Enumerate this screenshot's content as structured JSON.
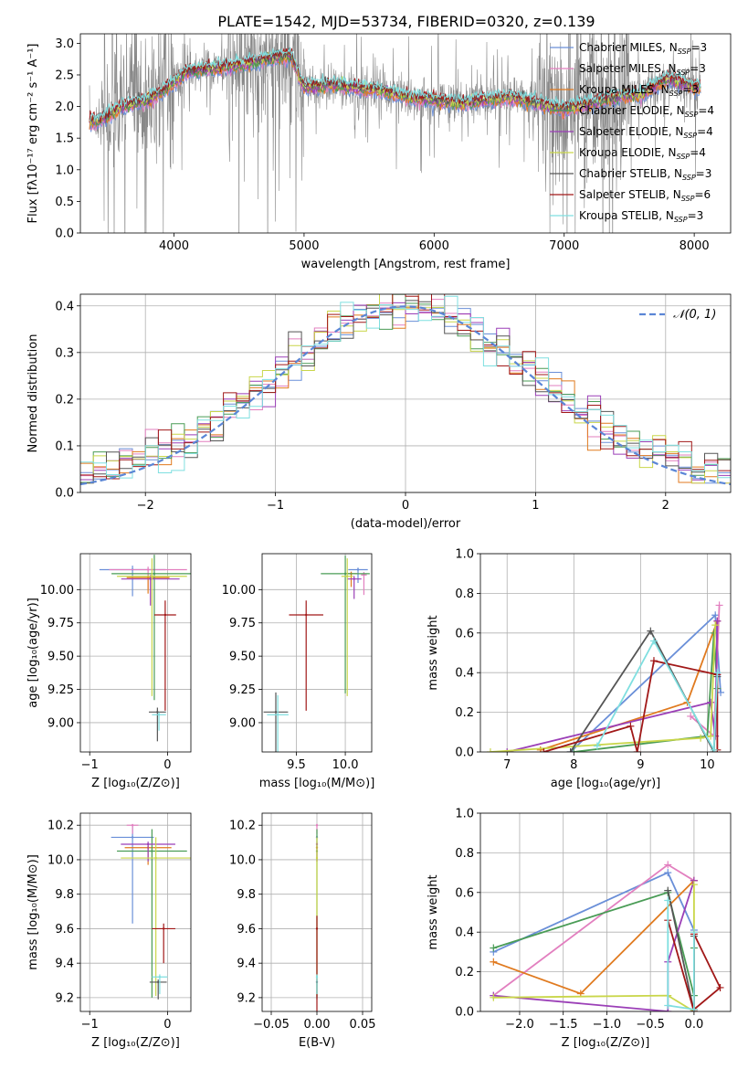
{
  "figure": {
    "title": "PLATE=1542, MJD=53734, FIBERID=0320, z=0.139"
  },
  "series_colors": [
    "#6a8fd8",
    "#e27fbf",
    "#e07a1f",
    "#4a9c56",
    "#9b3fb7",
    "#c9d64a",
    "#555555",
    "#a11818",
    "#7fdfe0"
  ],
  "legend_entries": [
    {
      "pre": "Chabrier MILES, N",
      "sub": "SSP",
      "post": "=3"
    },
    {
      "pre": "Salpeter MILES, N",
      "sub": "SSP",
      "post": "=3"
    },
    {
      "pre": "Kroupa MILES, N",
      "sub": "SSP",
      "post": "=3"
    },
    {
      "pre": "Chabrier ELODIE, N",
      "sub": "SSP",
      "post": "=4"
    },
    {
      "pre": "Salpeter ELODIE, N",
      "sub": "SSP",
      "post": "=4"
    },
    {
      "pre": "Kroupa ELODIE, N",
      "sub": "SSP",
      "post": "=4"
    },
    {
      "pre": "Chabrier STELIB, N",
      "sub": "SSP",
      "post": "=3"
    },
    {
      "pre": "Salpeter STELIB, N",
      "sub": "SSP",
      "post": "=6"
    },
    {
      "pre": "Kroupa STELIB, N",
      "sub": "SSP",
      "post": "=3"
    }
  ],
  "chart_data": [
    {
      "id": "spectrum",
      "type": "line",
      "xlabel": "wavelength [Angstrom, rest frame]",
      "ylabel": "Flux [fλ10⁻¹⁷ erg cm⁻² s⁻¹ A⁻¹]",
      "xlim": [
        3280,
        8280
      ],
      "ylim": [
        0,
        3.15
      ],
      "xticks": [
        4000,
        5000,
        6000,
        7000,
        8000
      ],
      "yticks": [
        0.0,
        0.5,
        1.0,
        1.5,
        2.0,
        2.5,
        3.0
      ],
      "x_range": [
        3350,
        8050
      ],
      "data_color": "#888888",
      "model_profile": [
        [
          3350,
          1.75
        ],
        [
          3450,
          1.8
        ],
        [
          3600,
          2.0
        ],
        [
          3800,
          2.1
        ],
        [
          3950,
          2.3
        ],
        [
          4100,
          2.55
        ],
        [
          4300,
          2.6
        ],
        [
          4500,
          2.65
        ],
        [
          4700,
          2.75
        ],
        [
          4900,
          2.8
        ],
        [
          5000,
          2.3
        ],
        [
          5200,
          2.35
        ],
        [
          5400,
          2.3
        ],
        [
          5600,
          2.25
        ],
        [
          5800,
          2.15
        ],
        [
          6000,
          2.1
        ],
        [
          6200,
          2.05
        ],
        [
          6400,
          2.1
        ],
        [
          6600,
          2.15
        ],
        [
          6800,
          2.05
        ],
        [
          7000,
          1.95
        ],
        [
          7200,
          2.05
        ],
        [
          7400,
          2.15
        ],
        [
          7600,
          2.2
        ],
        [
          7800,
          2.45
        ],
        [
          8000,
          2.3
        ]
      ],
      "grid": false,
      "legend_position": "upper right"
    },
    {
      "id": "residuals",
      "type": "histogram",
      "xlabel": "(data-model)/error",
      "ylabel": "Normed distribution",
      "xlim": [
        -2.5,
        2.5
      ],
      "ylim": [
        0,
        0.425
      ],
      "xticks": [
        -2,
        -1,
        0,
        1,
        2
      ],
      "yticks": [
        0.0,
        0.1,
        0.2,
        0.3,
        0.4
      ],
      "bin_width": 0.1,
      "reference_label": "𝒩(0, 1)",
      "reference_color": "#5b86d6",
      "grid": true,
      "legend_position": "upper right"
    },
    {
      "id": "age_vs_Z",
      "type": "scatter",
      "xlabel": "Z [log₁₀(Z/Z⊙)]",
      "ylabel": "age  [log₁₀(age/yr)]",
      "xlim": [
        -1.12,
        0.3
      ],
      "ylim": [
        8.78,
        10.27
      ],
      "xticks": [
        -1,
        0
      ],
      "yticks": [
        9.0,
        9.25,
        9.5,
        9.75,
        10.0
      ],
      "points": [
        {
          "x": -0.45,
          "y": 10.15,
          "xerr": 0.85,
          "yerr": 0.2
        },
        {
          "x": -0.25,
          "y": 10.15,
          "xerr": 1.0,
          "yerr": 0.15
        },
        {
          "x": -0.25,
          "y": 10.09,
          "xerr": 0.55,
          "yerr": 0.12
        },
        {
          "x": -0.17,
          "y": 10.12,
          "xerr": 1.1,
          "yerr": 0.95
        },
        {
          "x": -0.22,
          "y": 10.08,
          "xerr": 0.75,
          "yerr": 0.2
        },
        {
          "x": -0.2,
          "y": 10.1,
          "xerr": 0.9,
          "yerr": 0.9
        },
        {
          "x": -0.13,
          "y": 9.08,
          "xerr": 0.22,
          "yerr": 0.22
        },
        {
          "x": -0.03,
          "y": 9.81,
          "xerr": 0.28,
          "yerr": 0.72
        },
        {
          "x": -0.11,
          "y": 9.06,
          "xerr": 0.18,
          "yerr": 0.12
        }
      ],
      "grid": true
    },
    {
      "id": "age_vs_mass",
      "type": "scatter",
      "xlabel": "mass [log₁₀(M/M⊙)]",
      "ylabel": "",
      "xlim": [
        9.15,
        10.27
      ],
      "ylim": [
        8.78,
        10.27
      ],
      "xticks": [
        9.5,
        10.0
      ],
      "yticks": [
        9.0,
        9.25,
        9.5,
        9.75,
        10.0
      ],
      "points": [
        {
          "x": 10.13,
          "y": 10.15,
          "xerr": 0.2,
          "yerr": 0.1
        },
        {
          "x": 10.19,
          "y": 10.11,
          "xerr": 0.06,
          "yerr": 0.15
        },
        {
          "x": 10.06,
          "y": 10.12,
          "xerr": 0.12,
          "yerr": 0.1
        },
        {
          "x": 10.0,
          "y": 10.12,
          "xerr": 0.5,
          "yerr": 0.9
        },
        {
          "x": 10.09,
          "y": 10.08,
          "xerr": 0.15,
          "yerr": 0.15
        },
        {
          "x": 10.02,
          "y": 10.1,
          "xerr": 0.12,
          "yerr": 0.9
        },
        {
          "x": 9.29,
          "y": 9.08,
          "xerr": 0.25,
          "yerr": 0.98
        },
        {
          "x": 9.6,
          "y": 9.81,
          "xerr": 0.35,
          "yerr": 0.72
        },
        {
          "x": 9.31,
          "y": 9.06,
          "xerr": 0.22,
          "yerr": 0.98
        }
      ],
      "grid": true
    },
    {
      "id": "mass_weight_vs_age",
      "type": "line",
      "xlabel": "age  [log₁₀(age/yr)]",
      "ylabel": "mass weight",
      "xlim": [
        6.6,
        10.35
      ],
      "ylim": [
        0,
        1.0
      ],
      "xticks": [
        7,
        8,
        9,
        10
      ],
      "yticks": [
        0.0,
        0.2,
        0.4,
        0.6,
        0.8,
        1.0
      ],
      "series": [
        {
          "x": [
            7.95,
            10.12,
            10.2
          ],
          "y": [
            0.0,
            0.69,
            0.3
          ]
        },
        {
          "x": [
            9.75,
            10.1,
            10.18
          ],
          "y": [
            0.18,
            0.08,
            0.74
          ]
        },
        {
          "x": [
            7.5,
            9.7,
            10.15
          ],
          "y": [
            0.01,
            0.25,
            0.66
          ]
        },
        {
          "x": [
            8.0,
            10.0,
            10.1,
            10.15
          ],
          "y": [
            0.0,
            0.08,
            0.6,
            0.32
          ]
        },
        {
          "x": [
            7.0,
            10.05,
            10.12,
            10.15
          ],
          "y": [
            0.0,
            0.25,
            0.08,
            0.66
          ]
        },
        {
          "x": [
            6.75,
            9.9,
            10.05,
            10.12
          ],
          "y": [
            0.0,
            0.07,
            0.08,
            0.64
          ]
        },
        {
          "x": [
            7.95,
            9.15,
            10.1,
            10.15
          ],
          "y": [
            0.0,
            0.61,
            0.0,
            0.38
          ]
        },
        {
          "x": [
            7.55,
            8.85,
            8.95,
            9.2,
            10.15,
            10.15
          ],
          "y": [
            0.0,
            0.13,
            0.0,
            0.46,
            0.39,
            0.01
          ]
        },
        {
          "x": [
            8.35,
            9.2,
            10.1,
            10.15
          ],
          "y": [
            0.03,
            0.56,
            0.01,
            0.4
          ]
        }
      ],
      "grid": true
    },
    {
      "id": "mass_vs_Z",
      "type": "scatter",
      "xlabel": "Z [log₁₀(Z/Z⊙)]",
      "ylabel": "mass [log₁₀(M/M⊙)]",
      "xlim": [
        -1.12,
        0.3
      ],
      "ylim": [
        9.12,
        10.27
      ],
      "xticks": [
        -1,
        0
      ],
      "yticks": [
        9.2,
        9.4,
        9.6,
        9.8,
        10.0,
        10.2
      ],
      "points": [
        {
          "x": -0.45,
          "y": 10.13,
          "xerr": 0.55,
          "yerr": 0.5
        },
        {
          "x": -0.45,
          "y": 10.2,
          "xerr": 0.15,
          "yerr": 0.05
        },
        {
          "x": -0.25,
          "y": 10.07,
          "xerr": 0.6,
          "yerr": 0.1
        },
        {
          "x": -0.2,
          "y": 10.05,
          "xerr": 0.9,
          "yerr": 0.85
        },
        {
          "x": -0.25,
          "y": 10.09,
          "xerr": 0.7,
          "yerr": 0.1
        },
        {
          "x": -0.15,
          "y": 10.01,
          "xerr": 0.9,
          "yerr": 0.8
        },
        {
          "x": -0.12,
          "y": 9.29,
          "xerr": 0.22,
          "yerr": 0.1
        },
        {
          "x": -0.05,
          "y": 9.6,
          "xerr": 0.3,
          "yerr": 0.2
        },
        {
          "x": -0.1,
          "y": 9.32,
          "xerr": 0.2,
          "yerr": 0.1
        }
      ],
      "grid": true
    },
    {
      "id": "mass_vs_ebv",
      "type": "scatter",
      "xlabel": "E(B-V)",
      "ylabel": "",
      "xlim": [
        -0.06,
        0.06
      ],
      "ylim": [
        9.12,
        10.27
      ],
      "xticks": [
        -0.05,
        0.0,
        0.05
      ],
      "yticks": [
        9.2,
        9.4,
        9.6,
        9.8,
        10.0,
        10.2
      ],
      "points": [
        {
          "x": 0.0,
          "y": 10.13,
          "yerr": 0.06
        },
        {
          "x": 0.0,
          "y": 10.2,
          "yerr": 0.05
        },
        {
          "x": 0.0,
          "y": 10.07,
          "yerr": 0.08
        },
        {
          "x": 0.0,
          "y": 10.05,
          "yerr": 0.85
        },
        {
          "x": 0.0,
          "y": 10.09,
          "yerr": 0.1
        },
        {
          "x": 0.0,
          "y": 10.01,
          "yerr": 0.8
        },
        {
          "x": 0.0,
          "y": 9.29,
          "yerr": 0.1
        },
        {
          "x": 0.0,
          "y": 9.6,
          "yerr": 0.5
        },
        {
          "x": 0.0,
          "y": 9.32,
          "yerr": 0.1
        }
      ],
      "grid": true
    },
    {
      "id": "mass_weight_vs_Z",
      "type": "line",
      "xlabel": "Z [log₁₀(Z/Z⊙)]",
      "ylabel": "mass weight",
      "xlim": [
        -2.45,
        0.42
      ],
      "ylim": [
        0,
        1.0
      ],
      "xticks": [
        -2.0,
        -1.5,
        -1.0,
        -0.5,
        0.0
      ],
      "yticks": [
        0.0,
        0.2,
        0.4,
        0.6,
        0.8,
        1.0
      ],
      "series": [
        {
          "x": [
            -2.3,
            -0.3,
            0.0
          ],
          "y": [
            0.3,
            0.7,
            0.41
          ]
        },
        {
          "x": [
            -2.3,
            -0.3,
            0.0
          ],
          "y": [
            0.08,
            0.74,
            0.66
          ]
        },
        {
          "x": [
            -2.3,
            -1.3,
            0.0
          ],
          "y": [
            0.25,
            0.09,
            0.66
          ]
        },
        {
          "x": [
            -2.3,
            -0.3,
            0.0,
            0.0
          ],
          "y": [
            0.32,
            0.6,
            0.08,
            0.32
          ]
        },
        {
          "x": [
            -2.3,
            -0.3,
            -0.3,
            0.0
          ],
          "y": [
            0.08,
            0.0,
            0.25,
            0.66
          ]
        },
        {
          "x": [
            -2.3,
            -0.3,
            0.0,
            0.0
          ],
          "y": [
            0.07,
            0.08,
            0.0,
            0.64
          ]
        },
        {
          "x": [
            -0.3,
            0.0,
            0.0
          ],
          "y": [
            0.61,
            0.0,
            0.38
          ]
        },
        {
          "x": [
            -0.3,
            0.0,
            0.0,
            0.3,
            0.0
          ],
          "y": [
            0.46,
            0.0,
            0.39,
            0.12,
            0.01
          ]
        },
        {
          "x": [
            -0.3,
            -0.3,
            0.0,
            0.0
          ],
          "y": [
            0.56,
            0.03,
            0.01,
            0.4
          ]
        }
      ],
      "grid": true
    }
  ]
}
